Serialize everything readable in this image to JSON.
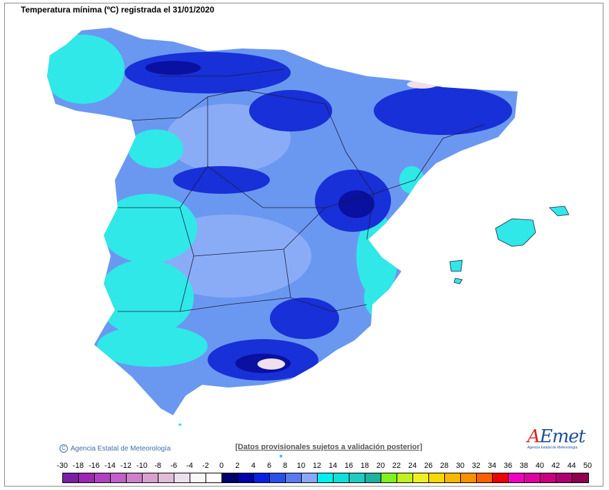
{
  "title": "Temperatura mínima (ºC) registrada el 31/01/2020",
  "copyright": "Agencia Estatal de Meteorología",
  "disclaimer": "[Datos provisionales sujetos a validación posterior]",
  "logo": {
    "text_a": "A",
    "text_rest": "Emet",
    "subtitle": "Agencia Estatal de Meteorología"
  },
  "legend": {
    "labels": [
      "-30",
      "-18",
      "-16",
      "-14",
      "-12",
      "-10",
      "-8",
      "-6",
      "-4",
      "-2",
      "0",
      "2",
      "4",
      "6",
      "8",
      "10",
      "12",
      "14",
      "16",
      "18",
      "20",
      "22",
      "24",
      "26",
      "28",
      "30",
      "32",
      "34",
      "36",
      "38",
      "40",
      "42",
      "44",
      "50"
    ],
    "colors": [
      "#7b1fa2",
      "#9c27b0",
      "#b040c0",
      "#c060c8",
      "#cc80c8",
      "#d8a0cc",
      "#e0bcd8",
      "#ece0ec",
      "#f8f8f8",
      "#ffffff",
      "#00006e",
      "#0000a8",
      "#0a20e0",
      "#2a50e8",
      "#5a78f0",
      "#8aa8f8",
      "#00f0f0",
      "#10e0d8",
      "#20ccc0",
      "#20b0a0",
      "#80f020",
      "#c0f020",
      "#f0f020",
      "#f8d800",
      "#f8b800",
      "#f89000",
      "#f86000",
      "#f00000",
      "#f000c0",
      "#e000a0",
      "#c80080",
      "#b00070",
      "#900050"
    ]
  },
  "map_colors": {
    "land_base": "#6a98f0",
    "land_light": "#8aacf6",
    "cyan": "#30e8e8",
    "dark": "#1830d8",
    "darker": "#0a10a0",
    "snow": "#f0e0ee",
    "border": "#1a1a3a"
  }
}
